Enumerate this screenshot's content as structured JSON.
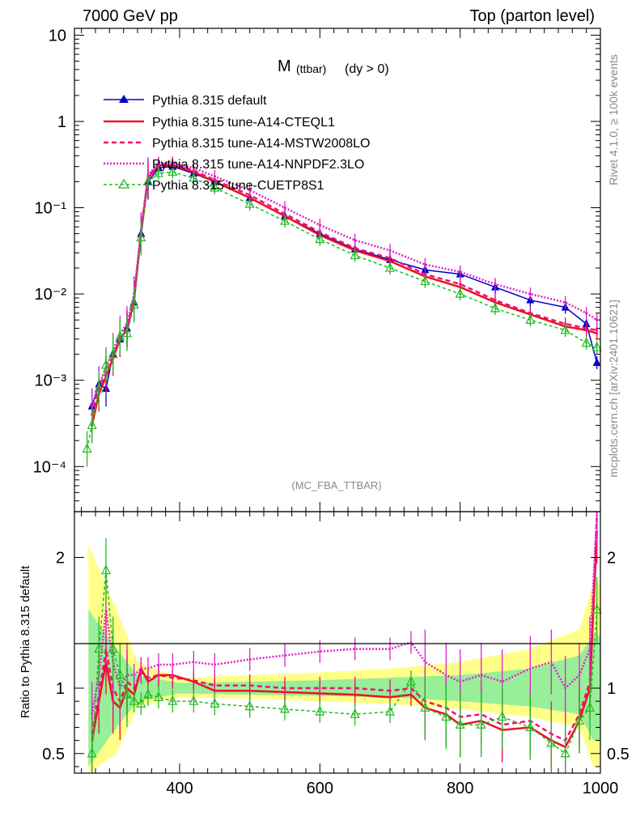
{
  "header": {
    "left": "7000 GeV pp",
    "right": "Top (parton level)"
  },
  "plot_title": {
    "main": "M",
    "sub": "(ttbar)",
    "cond": "(dy > 0)"
  },
  "side_labels": {
    "rivet": "Rivet 4.1.0, ≥ 100k events",
    "mcplots": "mcplots.cern.ch [arXiv:2401.10621]"
  },
  "analysis_tag": "(MC_FBA_TTBAR)",
  "colors": {
    "default": "#0000cc",
    "cteql1": "#ee1122",
    "mstw": "#ee1177",
    "nnpdf": "#dd22cc",
    "cuetp8s1": "#22bb22",
    "band_yellow": "#ffff88",
    "band_green": "#99ee99"
  },
  "chart_data": [
    {
      "type": "line",
      "scale": "log",
      "xlim": [
        250,
        1000
      ],
      "ylim": [
        3e-05,
        12
      ],
      "ytick_labels": [
        "10",
        "1",
        "10⁻¹",
        "10⁻²",
        "10⁻³",
        "10⁻⁴"
      ],
      "ytick_values": [
        10,
        1,
        0.1,
        0.01,
        0.001,
        0.0001
      ],
      "legend_position": "top-left",
      "series": [
        {
          "key": "default",
          "name": "Pythia 8.315 default",
          "style": "solid-triangle",
          "x": [
            275,
            285,
            295,
            305,
            315,
            325,
            335,
            345,
            355,
            370,
            390,
            420,
            450,
            500,
            550,
            600,
            650,
            700,
            750,
            800,
            850,
            900,
            950,
            980,
            995
          ],
          "y": [
            0.0005,
            0.0009,
            0.0008,
            0.002,
            0.003,
            0.004,
            0.008,
            0.05,
            0.2,
            0.29,
            0.3,
            0.25,
            0.2,
            0.13,
            0.08,
            0.05,
            0.033,
            0.025,
            0.019,
            0.017,
            0.012,
            0.0085,
            0.007,
            0.0045,
            0.0016
          ]
        },
        {
          "key": "cteql1",
          "name": "Pythia 8.315 tune-A14-CTEQL1",
          "style": "solid",
          "x": [
            275,
            285,
            295,
            305,
            315,
            325,
            335,
            345,
            355,
            370,
            390,
            420,
            450,
            500,
            550,
            600,
            650,
            700,
            750,
            800,
            850,
            900,
            950,
            980,
            995
          ],
          "y": [
            0.0003,
            0.0007,
            0.0011,
            0.0018,
            0.003,
            0.0038,
            0.0085,
            0.05,
            0.22,
            0.31,
            0.31,
            0.26,
            0.2,
            0.13,
            0.08,
            0.048,
            0.032,
            0.024,
            0.016,
            0.012,
            0.008,
            0.0058,
            0.0042,
            0.0038,
            0.0035
          ]
        },
        {
          "key": "mstw",
          "name": "Pythia 8.315 tune-A14-MSTW2008LO",
          "style": "dashed",
          "x": [
            275,
            285,
            295,
            305,
            315,
            325,
            335,
            345,
            355,
            370,
            390,
            420,
            450,
            500,
            550,
            600,
            650,
            700,
            750,
            800,
            850,
            900,
            950,
            980,
            995
          ],
          "y": [
            0.0004,
            0.0008,
            0.0012,
            0.0019,
            0.0031,
            0.004,
            0.009,
            0.052,
            0.23,
            0.32,
            0.32,
            0.27,
            0.21,
            0.14,
            0.085,
            0.052,
            0.034,
            0.026,
            0.017,
            0.013,
            0.0085,
            0.006,
            0.0045,
            0.004,
            0.0038
          ]
        },
        {
          "key": "nnpdf",
          "name": "Pythia 8.315 tune-A14-NNPDF2.3LO",
          "style": "dotted",
          "x": [
            275,
            285,
            295,
            305,
            315,
            325,
            335,
            345,
            355,
            370,
            390,
            420,
            450,
            500,
            550,
            600,
            650,
            700,
            750,
            800,
            850,
            900,
            950,
            980,
            995
          ],
          "y": [
            0.0005,
            0.0009,
            0.0014,
            0.0022,
            0.0035,
            0.0045,
            0.01,
            0.055,
            0.24,
            0.33,
            0.33,
            0.29,
            0.23,
            0.16,
            0.1,
            0.063,
            0.042,
            0.032,
            0.022,
            0.018,
            0.013,
            0.01,
            0.008,
            0.006,
            0.005
          ]
        },
        {
          "key": "cuetp8s1",
          "name": "Pythia 8.315 tune-CUETP8S1",
          "style": "dashed-triangle",
          "x": [
            268,
            275,
            285,
            295,
            305,
            315,
            325,
            335,
            345,
            355,
            370,
            390,
            420,
            450,
            500,
            550,
            600,
            650,
            700,
            750,
            800,
            850,
            900,
            950,
            980,
            995
          ],
          "y": [
            0.00016,
            0.0003,
            0.0008,
            0.0015,
            0.002,
            0.0032,
            0.0035,
            0.0075,
            0.045,
            0.2,
            0.25,
            0.26,
            0.22,
            0.17,
            0.11,
            0.07,
            0.043,
            0.028,
            0.02,
            0.014,
            0.01,
            0.0068,
            0.005,
            0.0038,
            0.0027,
            0.0024
          ]
        }
      ]
    },
    {
      "type": "line",
      "ylabel": "Ratio to Pythia 8.315 default",
      "xlim": [
        250,
        1000
      ],
      "ylim": [
        0.35,
        2.35
      ],
      "xtick_labels": [
        "400",
        "600",
        "800",
        "1000"
      ],
      "xtick_values": [
        400,
        600,
        800,
        1000
      ],
      "ytick_labels": [
        "0.5",
        "1",
        "2"
      ],
      "ytick_values": [
        0.5,
        1,
        2
      ],
      "band_green": {
        "x": [
          270,
          310,
          340,
          400,
          500,
          600,
          700,
          800,
          900,
          970,
          990,
          1000
        ],
        "lo": [
          0.4,
          0.7,
          0.9,
          0.96,
          0.95,
          0.94,
          0.93,
          0.9,
          0.86,
          0.8,
          0.6,
          0.6
        ],
        "hi": [
          1.6,
          1.3,
          1.1,
          1.04,
          1.05,
          1.06,
          1.08,
          1.1,
          1.15,
          1.25,
          1.4,
          1.4
        ]
      },
      "band_yellow": {
        "x": [
          270,
          310,
          340,
          400,
          500,
          600,
          700,
          800,
          900,
          970,
          990,
          1000
        ],
        "lo": [
          0.35,
          0.5,
          0.86,
          0.93,
          0.92,
          0.9,
          0.88,
          0.84,
          0.78,
          0.7,
          0.4,
          0.4
        ],
        "hi": [
          2.1,
          1.6,
          1.2,
          1.08,
          1.1,
          1.12,
          1.15,
          1.2,
          1.3,
          1.45,
          1.8,
          1.8
        ]
      },
      "series": [
        {
          "key": "cteql1",
          "name": "Pythia 8.315 tune-A14-CTEQL1",
          "x": [
            275,
            285,
            295,
            305,
            315,
            325,
            335,
            345,
            355,
            370,
            390,
            420,
            450,
            500,
            550,
            600,
            650,
            700,
            730,
            750,
            780,
            800,
            830,
            860,
            900,
            930,
            950,
            970,
            985,
            995
          ],
          "y": [
            0.6,
            0.9,
            1.2,
            0.9,
            0.85,
            1.0,
            0.95,
            1.15,
            1.05,
            1.1,
            1.1,
            1.05,
            0.98,
            0.98,
            0.97,
            0.96,
            0.95,
            0.93,
            0.95,
            0.85,
            0.8,
            0.72,
            0.75,
            0.68,
            0.7,
            0.6,
            0.55,
            0.75,
            1.0,
            2.2
          ]
        },
        {
          "key": "mstw",
          "name": "Pythia 8.315 tune-A14-MSTW2008LO",
          "x": [
            275,
            285,
            295,
            305,
            315,
            325,
            335,
            345,
            355,
            370,
            390,
            420,
            450,
            500,
            550,
            600,
            650,
            700,
            730,
            750,
            780,
            800,
            830,
            860,
            900,
            930,
            950,
            970,
            985,
            995
          ],
          "y": [
            0.65,
            0.95,
            1.3,
            1.0,
            0.9,
            1.05,
            1.0,
            1.12,
            1.08,
            1.1,
            1.08,
            1.06,
            1.02,
            1.02,
            1.0,
            1.0,
            1.0,
            0.98,
            1.0,
            0.9,
            0.85,
            0.78,
            0.8,
            0.72,
            0.75,
            0.65,
            0.6,
            0.8,
            1.05,
            2.3
          ]
        },
        {
          "key": "nnpdf",
          "name": "Pythia 8.315 tune-A14-NNPDF2.3LO",
          "x": [
            275,
            285,
            295,
            305,
            315,
            325,
            335,
            345,
            355,
            370,
            390,
            420,
            450,
            500,
            550,
            600,
            650,
            700,
            730,
            750,
            780,
            800,
            830,
            860,
            900,
            930,
            950,
            970,
            985,
            995
          ],
          "y": [
            0.8,
            1.1,
            1.6,
            1.2,
            1.0,
            1.1,
            1.1,
            1.15,
            1.15,
            1.18,
            1.18,
            1.2,
            1.18,
            1.22,
            1.25,
            1.28,
            1.3,
            1.3,
            1.35,
            1.2,
            1.1,
            1.05,
            1.1,
            1.05,
            1.15,
            1.2,
            1.0,
            1.1,
            1.3,
            2.4
          ]
        },
        {
          "key": "cuetp8s1",
          "name": "Pythia 8.315 tune-CUETP8S1",
          "x": [
            275,
            285,
            295,
            305,
            315,
            325,
            335,
            345,
            355,
            370,
            390,
            420,
            450,
            500,
            550,
            600,
            650,
            700,
            730,
            750,
            780,
            800,
            830,
            860,
            900,
            930,
            950,
            970,
            985,
            995
          ],
          "y": [
            0.5,
            1.3,
            1.9,
            1.3,
            1.1,
            0.95,
            0.9,
            0.88,
            0.95,
            0.93,
            0.9,
            0.9,
            0.88,
            0.86,
            0.84,
            0.82,
            0.8,
            0.82,
            1.05,
            0.85,
            0.78,
            0.72,
            0.72,
            0.78,
            0.7,
            0.58,
            0.5,
            0.75,
            0.85,
            1.6
          ]
        }
      ]
    }
  ]
}
